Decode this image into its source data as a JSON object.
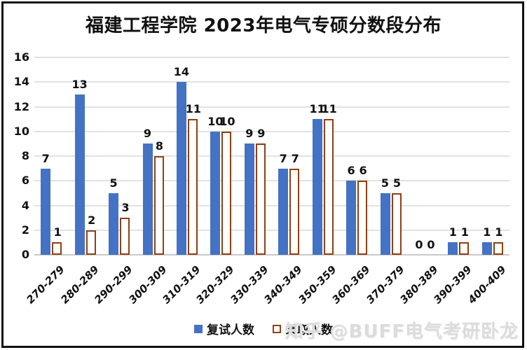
{
  "title": "福建工程学院 2023年电气专硕分数段分布",
  "watermark": "知乎 @BUFF电气考研卧龙",
  "colors": {
    "series1_fill": "#4472C4",
    "series2_border": "#8F4012",
    "series2_fill": "#FFFFFF",
    "gridline": "#E2E2E2",
    "baseline": "#C9C9C9",
    "text": "#111111",
    "watermark": "#DCDCDC"
  },
  "chart_data": {
    "type": "bar",
    "title": "福建工程学院 2023年电气专硕分数段分布",
    "categories": [
      "270-279",
      "280-289",
      "290-299",
      "300-309",
      "310-319",
      "320-329",
      "330-339",
      "340-349",
      "350-359",
      "360-369",
      "370-379",
      "380-389",
      "390-399",
      "400-409"
    ],
    "series": [
      {
        "name": "复试人数",
        "values": [
          7,
          13,
          5,
          9,
          14,
          10,
          9,
          7,
          11,
          6,
          5,
          0,
          1,
          1
        ]
      },
      {
        "name": "录取人数",
        "values": [
          1,
          2,
          3,
          8,
          11,
          10,
          9,
          7,
          11,
          6,
          5,
          0,
          1,
          1
        ]
      }
    ],
    "xlabel": "",
    "ylabel": "",
    "ylim": [
      0,
      16
    ],
    "ytick_step": 2,
    "grid": true,
    "data_labels": true,
    "legend_position": "bottom"
  }
}
